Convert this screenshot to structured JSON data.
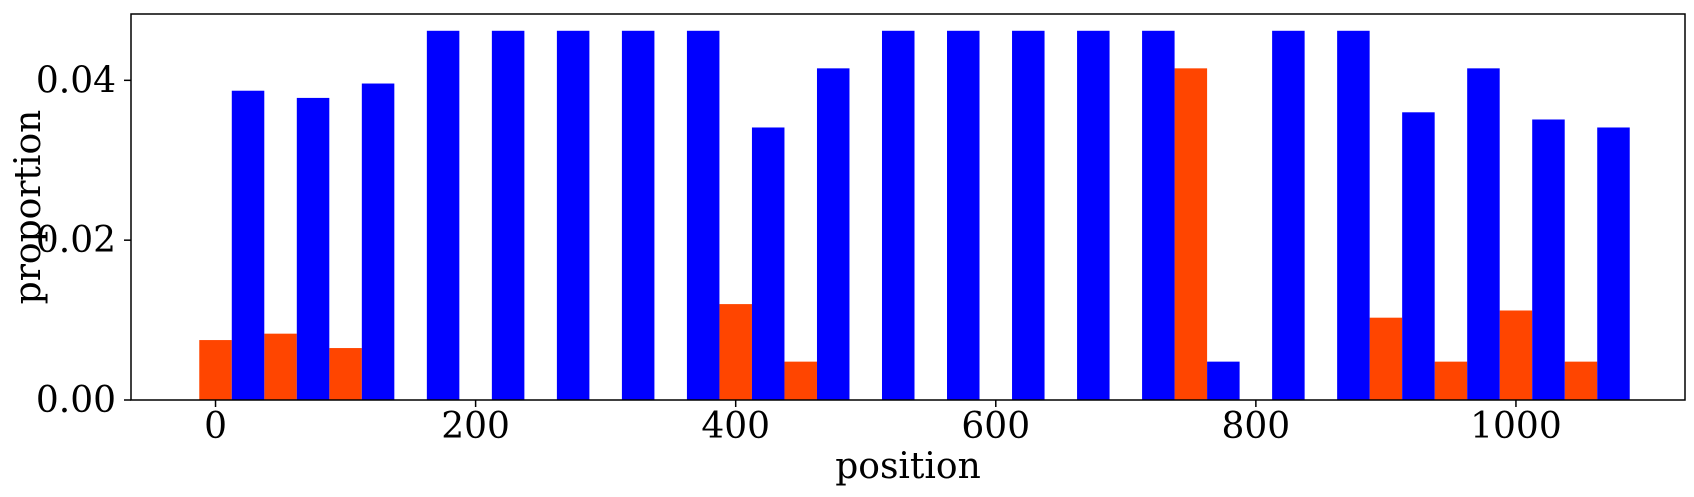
{
  "chart_data": {
    "type": "bar",
    "xlabel": "position",
    "ylabel": "proportion",
    "xlim": [
      -65,
      1130
    ],
    "ylim": [
      0,
      0.0483
    ],
    "xticks": [
      0,
      200,
      400,
      600,
      800,
      1000
    ],
    "xtick_labels": [
      "0",
      "200",
      "400",
      "600",
      "800",
      "1000"
    ],
    "yticks": [
      0,
      0.02,
      0.04
    ],
    "ytick_labels": [
      "0.00",
      "0.02",
      "0.04"
    ],
    "bar_width": 25,
    "colors": {
      "orange": "#ff4500",
      "blue": "#0000ff"
    },
    "series": [
      {
        "color_key": "orange",
        "x": [
          0,
          50,
          100,
          150,
          200,
          250,
          300,
          350,
          400,
          450,
          500,
          550,
          600,
          650,
          700,
          750,
          800,
          850,
          900,
          950,
          1000,
          1050
        ],
        "values": [
          0.0075,
          0.0083,
          0.0065,
          0,
          0,
          0,
          0,
          0,
          0.012,
          0.0048,
          0,
          0,
          0,
          0,
          0,
          0.0415,
          0,
          0,
          0.0103,
          0.0048,
          0.0112,
          0.0048
        ]
      },
      {
        "color_key": "blue",
        "x": [
          25,
          75,
          125,
          175,
          225,
          275,
          325,
          375,
          425,
          475,
          525,
          575,
          625,
          675,
          725,
          775,
          825,
          875,
          925,
          975,
          1025,
          1075
        ],
        "values": [
          0.0387,
          0.0378,
          0.0396,
          0.0462,
          0.0462,
          0.0462,
          0.0462,
          0.0462,
          0.0341,
          0.0415,
          0.0462,
          0.0462,
          0.0462,
          0.0462,
          0.0462,
          0.0048,
          0.0462,
          0.0462,
          0.036,
          0.0415,
          0.0351,
          0.0341
        ]
      }
    ]
  }
}
